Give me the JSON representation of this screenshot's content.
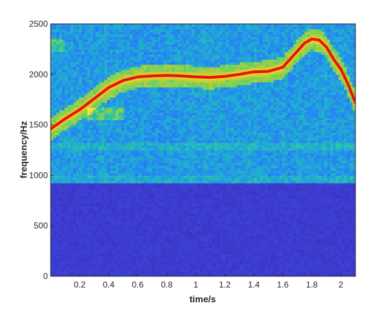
{
  "chart_data": {
    "type": "heatmap",
    "title": "",
    "xlabel": "time/s",
    "ylabel": "frequency/Hz",
    "xlim": [
      0,
      2.1
    ],
    "ylim": [
      0,
      2500
    ],
    "xticks": [
      0.2,
      0.4,
      0.6,
      0.8,
      1.0,
      1.2,
      1.4,
      1.6,
      1.8,
      2.0
    ],
    "xtick_labels": [
      "0.2",
      "0.4",
      "0.6",
      "0.8",
      "1",
      "1.2",
      "1.4",
      "1.6",
      "1.8",
      "2"
    ],
    "yticks": [
      0,
      500,
      1000,
      1500,
      2000,
      2500
    ],
    "ytick_labels": [
      "0",
      "500",
      "1000",
      "1500",
      "2000",
      "2500"
    ],
    "colormap": "parula",
    "colors": {
      "low": "#3e26a8",
      "mid": "#1fa8d8",
      "high": "#f9e22a",
      "trace": "#e8140b"
    },
    "spectrogram_noise_floor_hz": 920,
    "series": [
      {
        "type": "line",
        "x": [
          0.0,
          0.1,
          0.2,
          0.3,
          0.4,
          0.5,
          0.6,
          0.7,
          0.8,
          0.9,
          1.0,
          1.1,
          1.2,
          1.3,
          1.4,
          1.5,
          1.6,
          1.7,
          1.75,
          1.8,
          1.85,
          1.9,
          1.95,
          2.0,
          2.05,
          2.1
        ],
        "y": [
          1460,
          1560,
          1650,
          1760,
          1870,
          1940,
          1975,
          1985,
          1990,
          1985,
          1975,
          1970,
          1980,
          2000,
          2025,
          2030,
          2070,
          2230,
          2310,
          2350,
          2340,
          2270,
          2150,
          2050,
          1900,
          1720
        ]
      }
    ]
  }
}
